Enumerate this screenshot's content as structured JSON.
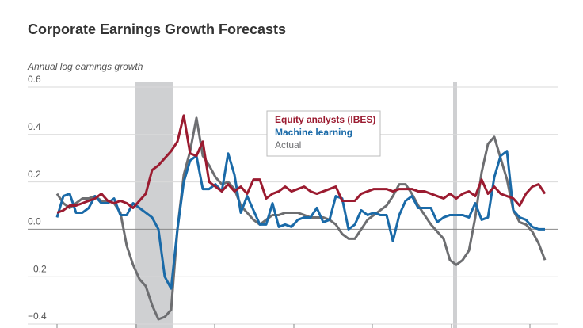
{
  "chart_data": {
    "type": "line",
    "title": "Corporate Earnings Growth Forecasts",
    "y_label": "Annual log earnings growth",
    "categories": [
      null,
      null,
      null,
      null,
      null,
      null,
      null,
      null,
      null,
      null,
      null,
      null,
      null,
      null,
      null,
      null,
      null,
      null,
      null,
      null,
      null,
      null,
      null,
      null,
      null,
      null,
      null,
      null,
      null,
      null,
      null,
      null,
      null,
      null,
      null,
      null,
      null,
      null,
      null,
      null,
      null,
      null,
      null,
      null,
      null,
      null,
      null,
      null,
      null,
      null,
      null,
      null,
      null,
      null,
      null,
      null,
      null,
      null,
      null,
      null,
      null,
      null,
      null,
      null,
      null,
      null,
      null,
      null,
      null,
      null,
      null,
      null,
      null,
      null,
      null,
      null,
      null,
      null
    ],
    "ylim": [
      -0.4,
      0.6
    ],
    "yticks": [
      0.6,
      0.4,
      0.2,
      {
        "value": 0,
        "label": "0.0"
      },
      {
        "value": -0.2,
        "label": "−0.2"
      },
      {
        "value": -0.4,
        "label": "−0.4"
      }
    ],
    "grid": true,
    "series": [
      {
        "name": "Equity analysts (IBES)",
        "color": "#9b1b30",
        "values": [
          0.07,
          0.08,
          0.1,
          0.1,
          0.11,
          0.12,
          0.13,
          0.15,
          0.12,
          0.11,
          0.12,
          0.11,
          0.09,
          0.12,
          0.15,
          0.25,
          0.27,
          0.3,
          0.33,
          0.37,
          0.48,
          0.32,
          0.31,
          0.37,
          0.2,
          0.18,
          0.16,
          0.19,
          0.16,
          0.18,
          0.15,
          0.21,
          0.21,
          0.13,
          0.15,
          0.16,
          0.18,
          0.16,
          0.17,
          0.18,
          0.16,
          0.15,
          0.16,
          0.17,
          0.18,
          0.12,
          0.12,
          0.12,
          0.15,
          0.16,
          0.17,
          0.17,
          0.17,
          0.16,
          0.17,
          0.17,
          0.17,
          0.16,
          0.16,
          0.15,
          0.14,
          0.13,
          0.15,
          0.13,
          0.15,
          0.16,
          0.14,
          0.21,
          0.15,
          0.18,
          0.15,
          0.14,
          0.13,
          0.1,
          0.15,
          0.18,
          0.19,
          0.15
        ]
      },
      {
        "name": "Machine learning",
        "color": "#1a6aa8",
        "values": [
          0.05,
          0.14,
          0.15,
          0.07,
          0.07,
          0.09,
          0.14,
          0.11,
          0.11,
          0.13,
          0.06,
          0.06,
          0.11,
          0.09,
          0.07,
          0.05,
          0.0,
          -0.2,
          -0.25,
          0.0,
          0.2,
          0.29,
          0.31,
          0.17,
          0.17,
          0.19,
          0.16,
          0.32,
          0.23,
          0.07,
          0.14,
          0.08,
          0.02,
          0.02,
          0.11,
          0.01,
          0.02,
          0.01,
          0.04,
          0.05,
          0.05,
          0.09,
          0.03,
          0.04,
          0.14,
          0.13,
          0.0,
          0.02,
          0.08,
          0.06,
          0.07,
          0.06,
          0.06,
          -0.05,
          0.06,
          0.12,
          0.14,
          0.09,
          0.09,
          0.09,
          0.03,
          0.05,
          0.06,
          0.06,
          0.06,
          0.05,
          0.11,
          0.04,
          0.05,
          0.22,
          0.31,
          0.33,
          0.08,
          0.05,
          0.04,
          0.01,
          0.0,
          0.0
        ]
      },
      {
        "name": "Actual",
        "color": "#6d6e71",
        "values": [
          0.15,
          0.11,
          0.09,
          0.11,
          0.13,
          0.13,
          0.14,
          0.12,
          0.12,
          0.11,
          0.07,
          -0.07,
          -0.15,
          -0.21,
          -0.24,
          -0.32,
          -0.38,
          -0.37,
          -0.34,
          0.0,
          0.23,
          0.33,
          0.47,
          0.31,
          0.27,
          0.22,
          0.19,
          0.2,
          0.17,
          0.1,
          0.07,
          0.04,
          0.02,
          0.04,
          0.06,
          0.06,
          0.07,
          0.07,
          0.07,
          0.06,
          0.05,
          0.05,
          0.05,
          0.04,
          0.02,
          -0.02,
          -0.04,
          -0.04,
          0.0,
          0.04,
          0.06,
          0.08,
          0.1,
          0.14,
          0.19,
          0.19,
          0.15,
          0.1,
          0.06,
          0.02,
          -0.01,
          -0.04,
          -0.13,
          -0.15,
          -0.13,
          -0.09,
          0.05,
          0.24,
          0.36,
          0.39,
          0.3,
          0.21,
          0.08,
          0.03,
          0.02,
          -0.01,
          -0.06,
          -0.13
        ]
      }
    ]
  }
}
